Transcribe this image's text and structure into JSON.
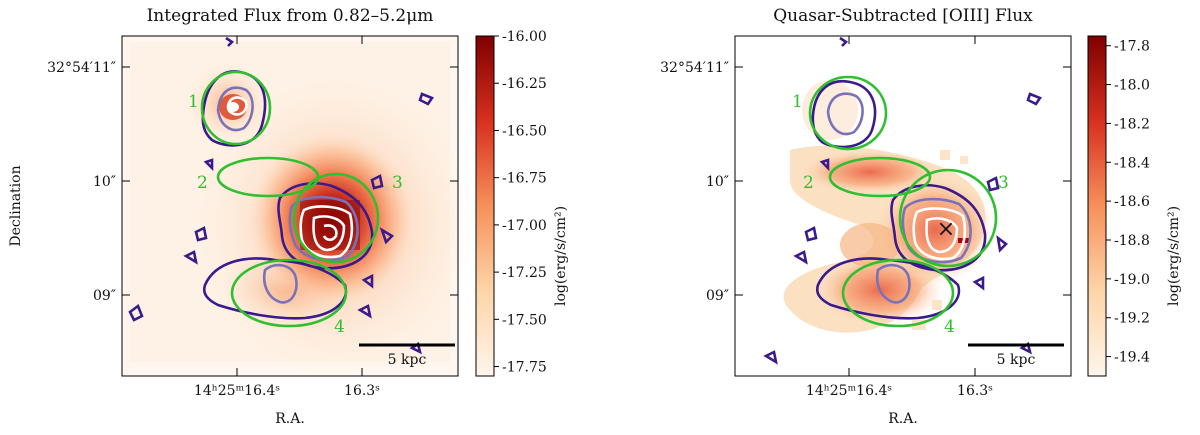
{
  "figure": {
    "panels": [
      {
        "title": "Integrated Flux from 0.82–5.2μm",
        "colorbar_label": "log(erg/s/cm²)",
        "colorbar_ticks": [
          "-16.00",
          "-16.25",
          "-16.50",
          "-16.75",
          "-17.00",
          "-17.25",
          "-17.50",
          "-17.75"
        ],
        "colorbar_range": [
          -17.8,
          -16.0
        ],
        "ylabel": "Declination",
        "yticks": [
          "32°54′11″",
          "10″",
          "09″"
        ],
        "xticks": [
          "14ʰ25ᵐ16.4ˢ",
          "16.3ˢ"
        ],
        "xlabel": "R.A.",
        "scalebar": "5 kpc",
        "regions": [
          "1",
          "2",
          "3",
          "4"
        ]
      },
      {
        "title": "Quasar-Subtracted [OIII] Flux",
        "colorbar_label": "log(erg/s/cm²)",
        "colorbar_ticks": [
          "-17.8",
          "-18.0",
          "-18.2",
          "-18.4",
          "-18.6",
          "-18.8",
          "-19.0",
          "-19.2",
          "-19.4"
        ],
        "colorbar_range": [
          -19.5,
          -17.75
        ],
        "yticks": [
          "32°54′11″",
          "10″",
          "09″"
        ],
        "xticks": [
          "14ʰ25ᵐ16.4ˢ",
          "16.3ˢ"
        ],
        "xlabel": "R.A.",
        "scalebar": "5 kpc",
        "regions": [
          "1",
          "2",
          "3",
          "4"
        ],
        "quasar_marker": "×"
      }
    ]
  },
  "chart_data": [
    {
      "type": "heatmap",
      "title": "Integrated Flux from 0.82–5.2μm",
      "xlabel": "R.A.",
      "ylabel": "Declination",
      "colorbar": {
        "label": "log(erg/s/cm²)",
        "range": [
          -17.8,
          -16.0
        ]
      },
      "annotations": [
        "1",
        "2",
        "3",
        "4",
        "5 kpc"
      ]
    },
    {
      "type": "heatmap",
      "title": "Quasar-Subtracted [OIII] Flux",
      "xlabel": "R.A.",
      "colorbar": {
        "label": "log(erg/s/cm²)",
        "range": [
          -19.5,
          -17.75
        ]
      },
      "annotations": [
        "1",
        "2",
        "3",
        "4",
        "5 kpc",
        "×"
      ]
    }
  ],
  "colors": {
    "region_ellipse": "#2fbf2f",
    "contour_outer": "#3b1a8c",
    "contour_mid": "#7a72b8",
    "contour_inner": "#ffffff",
    "colormap_high": "#7f0000",
    "colormap_low": "#fff5eb"
  }
}
